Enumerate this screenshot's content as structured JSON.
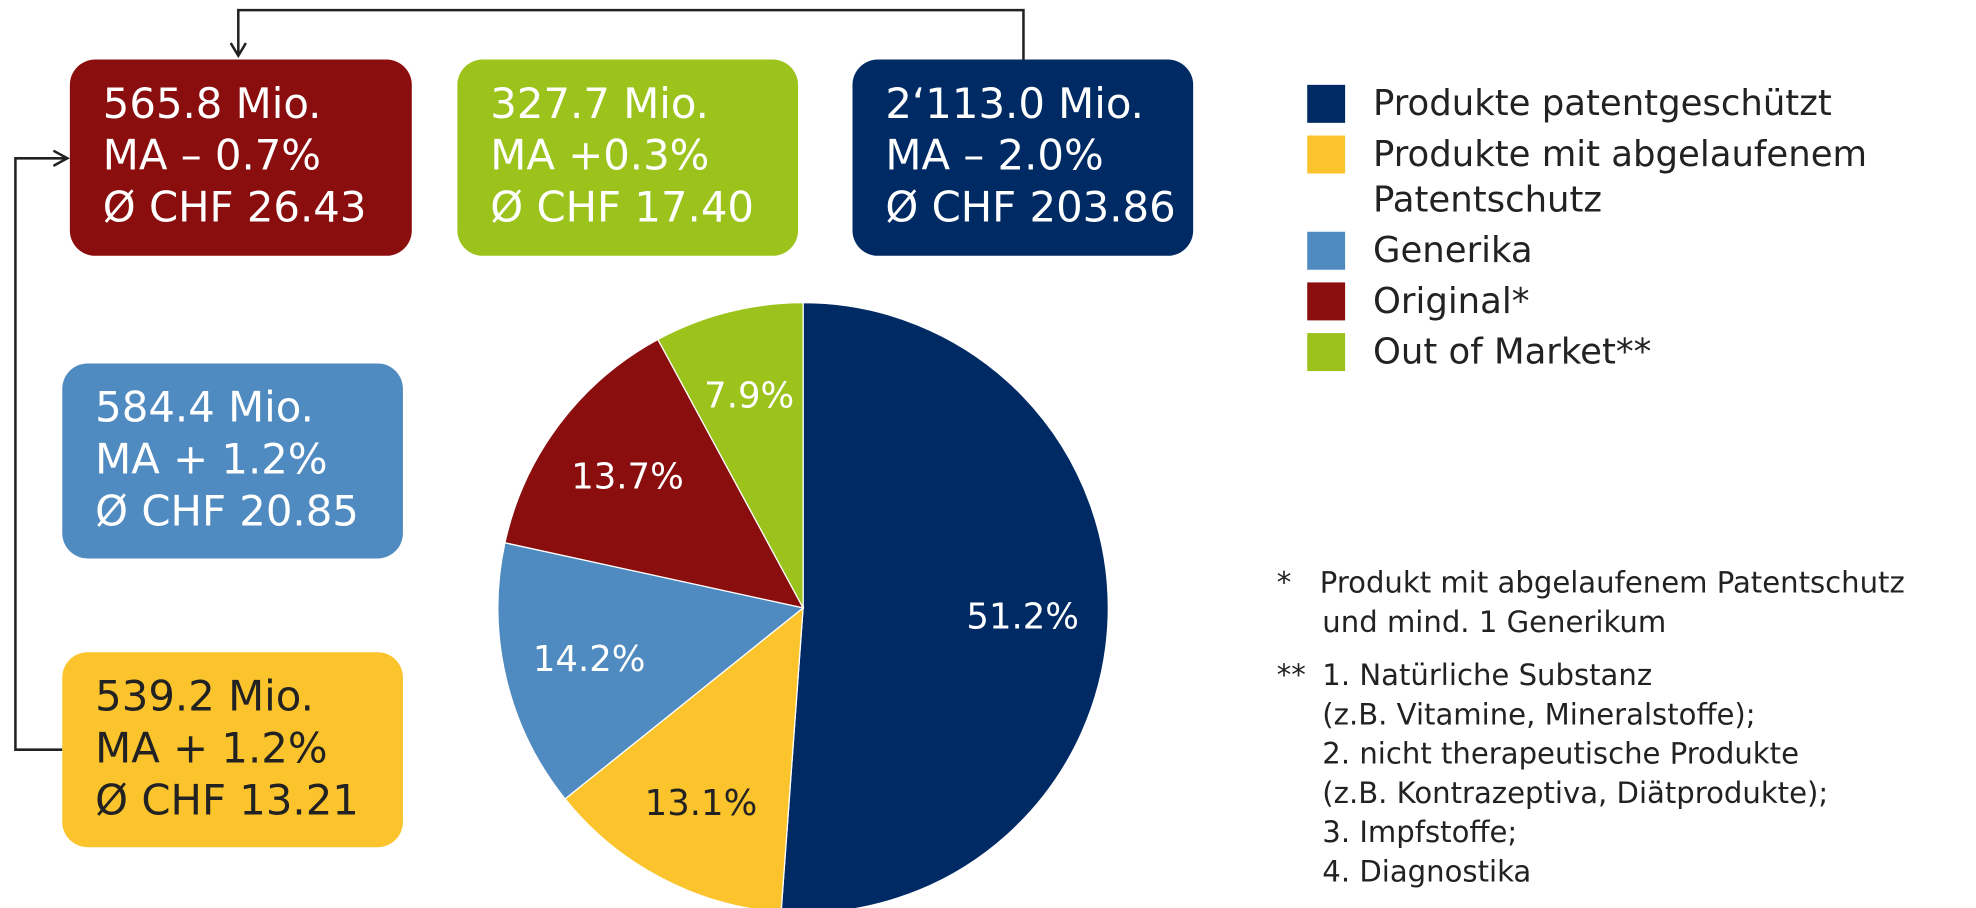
{
  "chart_data": {
    "type": "pie",
    "categories": [
      "Produkte patentgeschützt",
      "Produkte mit abgelaufenem Patentschutz",
      "Generika",
      "Original*",
      "Out of Market**"
    ],
    "values": [
      51.2,
      13.1,
      14.2,
      13.7,
      7.9
    ],
    "value_labels": [
      "51.2%",
      "13.1%",
      "14.2%",
      "13.7%",
      "7.9%"
    ],
    "colors": [
      "#002a64",
      "#fcc42c",
      "#4f8bc0",
      "#8b0e0e",
      "#9bc31c"
    ]
  },
  "boxes": [
    {
      "lines": [
        "565.8 Mio.",
        "MA – 0.7%",
        "Ø CHF 26.43"
      ],
      "color": "#8b0e0e"
    },
    {
      "lines": [
        "327.7 Mio.",
        "MA  +0.3%",
        "Ø CHF 17.40"
      ],
      "color": "#9bc31c"
    },
    {
      "lines": [
        "2‘113.0 Mio.",
        "MA – 2.0%",
        "Ø CHF 203.86"
      ],
      "color": "#002a64"
    },
    {
      "lines": [
        "584.4 Mio.",
        "MA + 1.2%",
        "Ø CHF 20.85"
      ],
      "color": "#4f8bc0"
    },
    {
      "lines": [
        "539.2 Mio.",
        "MA + 1.2%",
        "Ø CHF 13.21"
      ],
      "color": "#fcc42c"
    }
  ],
  "footnotes": [
    {
      "marker": "*",
      "lines": [
        "Produkt mit abgelaufenem Patentschutz",
        "und mind. 1 Generikum"
      ]
    },
    {
      "marker": "**",
      "lines": [
        "1. Natürliche Substanz",
        "(z.B. Vitamine, Mineralstoffe);",
        "2. nicht therapeutische Produkte",
        "(z.B. Kontrazeptiva, Diätprodukte);",
        "3. Impfstoffe;",
        "4. Diagnostika"
      ]
    }
  ]
}
